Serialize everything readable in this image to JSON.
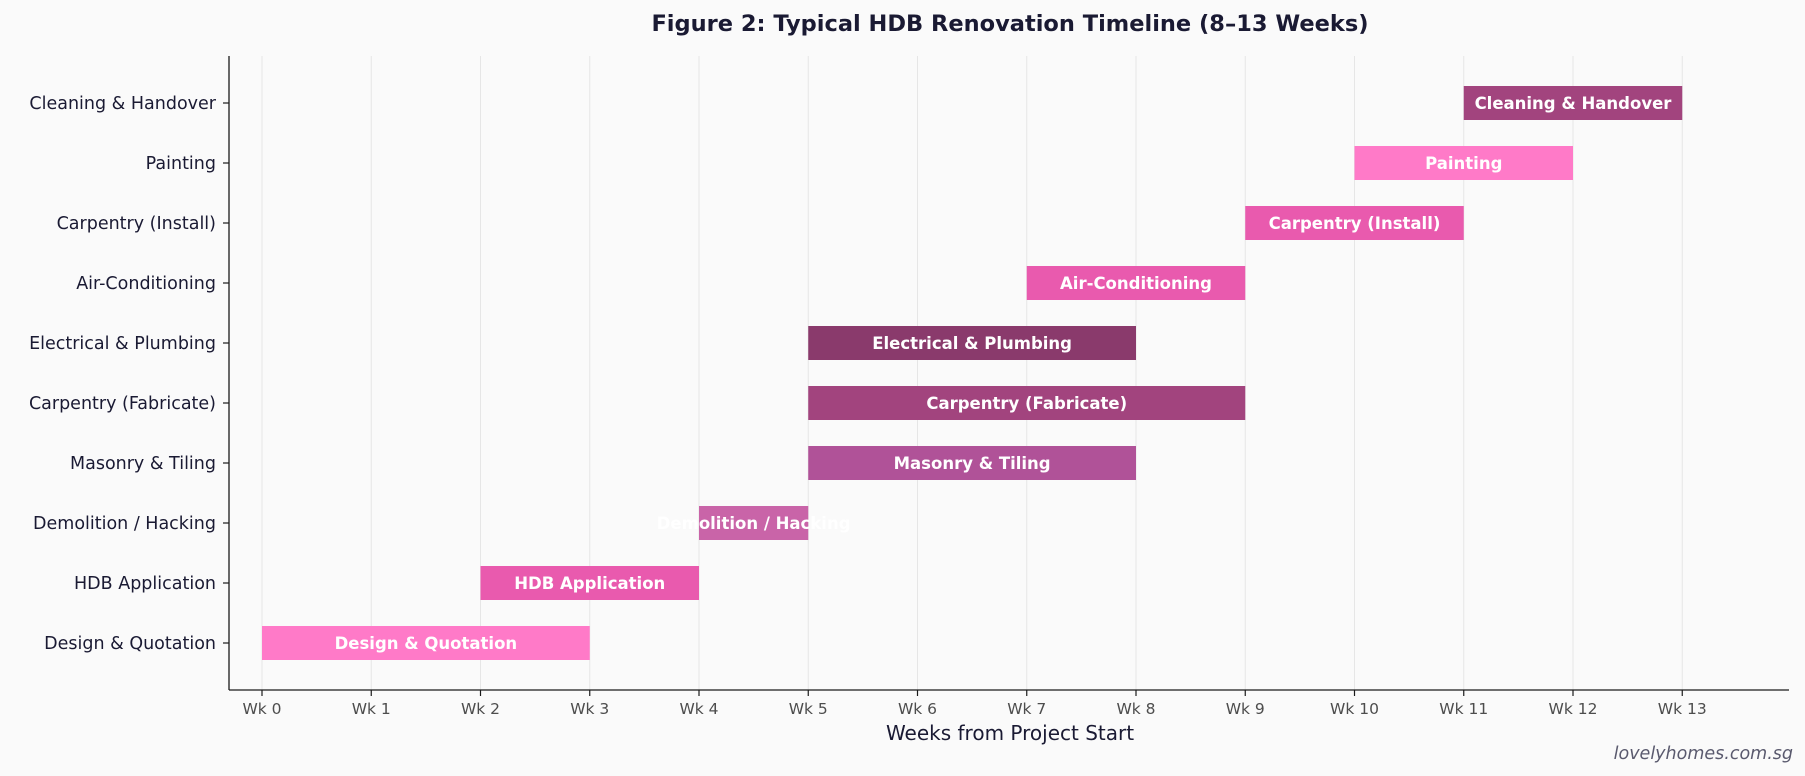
{
  "chart_data": {
    "type": "bar",
    "orientation": "horizontal",
    "title": "Figure 2: Typical HDB Renovation Timeline (8–13 Weeks)",
    "xlabel": "Weeks from Project Start",
    "ylabel": "",
    "xlim": [
      -0.3,
      14.0
    ],
    "x_ticks": [
      0,
      1,
      2,
      3,
      4,
      5,
      6,
      7,
      8,
      9,
      10,
      11,
      12,
      13
    ],
    "x_tick_labels": [
      "Wk 0",
      "Wk 1",
      "Wk 2",
      "Wk 3",
      "Wk 4",
      "Wk 5",
      "Wk 6",
      "Wk 7",
      "Wk 8",
      "Wk 9",
      "Wk 10",
      "Wk 11",
      "Wk 12",
      "Wk 13"
    ],
    "grid": "vertical",
    "tasks": [
      {
        "name": "Design & Quotation",
        "start": 0,
        "end": 3,
        "color": "#ff7ac8"
      },
      {
        "name": "HDB Application",
        "start": 2,
        "end": 4,
        "color": "#e95aae"
      },
      {
        "name": "Demolition / Hacking",
        "start": 4,
        "end": 5,
        "color": "#c964a8"
      },
      {
        "name": "Masonry & Tiling",
        "start": 5,
        "end": 8,
        "color": "#b05298"
      },
      {
        "name": "Carpentry (Fabricate)",
        "start": 5,
        "end": 9,
        "color": "#a2447e"
      },
      {
        "name": "Electrical & Plumbing",
        "start": 5,
        "end": 8,
        "color": "#8a3a6c"
      },
      {
        "name": "Air-Conditioning",
        "start": 7,
        "end": 9,
        "color": "#e95aae"
      },
      {
        "name": "Carpentry (Install)",
        "start": 9,
        "end": 11,
        "color": "#e95aae"
      },
      {
        "name": "Painting",
        "start": 10,
        "end": 12,
        "color": "#ff7ac8"
      },
      {
        "name": "Cleaning & Handover",
        "start": 11,
        "end": 13,
        "color": "#a2447e"
      }
    ]
  },
  "watermark": "lovelyhomes.com.sg",
  "colors": {
    "background": "#fafafa",
    "axis": "#1a1a1a",
    "grid": "#e6e6e6",
    "text": "#1a1a33"
  }
}
